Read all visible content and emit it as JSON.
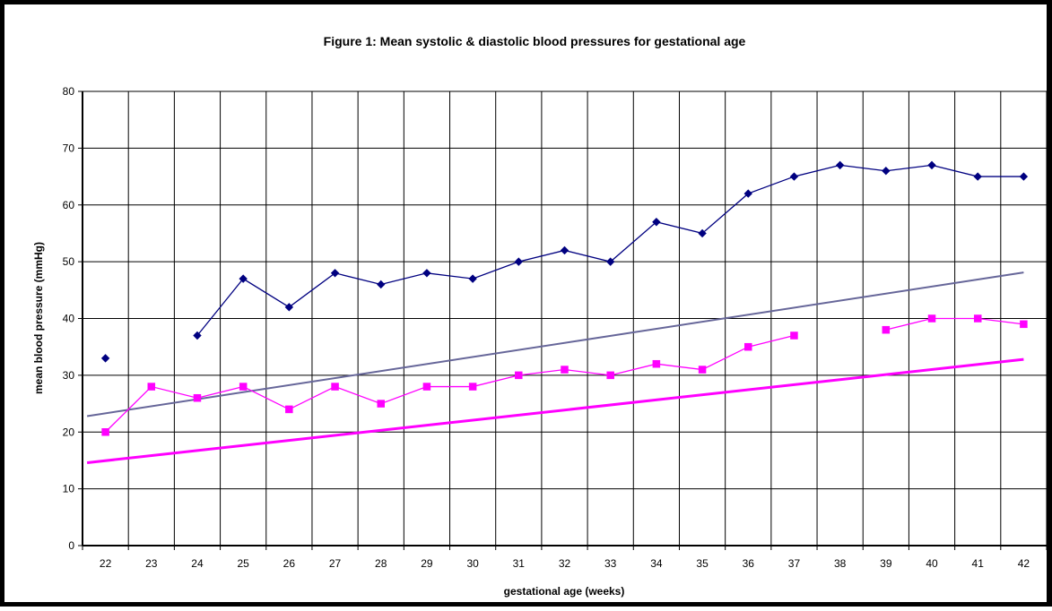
{
  "chart_data": {
    "type": "line",
    "title": "Figure 1:  Mean systolic & diastolic blood pressures for gestational age",
    "xlabel": "gestational age (weeks)",
    "ylabel": "mean blood pressure (mmHg)",
    "x": [
      22,
      23,
      24,
      25,
      26,
      27,
      28,
      29,
      30,
      31,
      32,
      33,
      34,
      35,
      36,
      37,
      38,
      39,
      40,
      41,
      42
    ],
    "xlim": [
      22,
      42
    ],
    "ylim": [
      0,
      80
    ],
    "yticks": [
      0,
      10,
      20,
      30,
      40,
      50,
      60,
      70,
      80
    ],
    "grid": true,
    "legend": "none",
    "series": [
      {
        "color": "#000080",
        "marker": "diamond",
        "values": [
          33,
          null,
          37,
          47,
          42,
          48,
          46,
          48,
          47,
          50,
          52,
          50,
          57,
          55,
          62,
          65,
          67,
          66,
          67,
          65,
          65
        ]
      },
      {
        "color": "#FF00FF",
        "marker": "square",
        "values": [
          20,
          28,
          26,
          28,
          24,
          28,
          25,
          28,
          28,
          30,
          31,
          30,
          32,
          31,
          35,
          37,
          null,
          38,
          40,
          40,
          39
        ]
      }
    ],
    "trend_lines": [
      {
        "color": "#666699",
        "from": [
          21.6,
          22.8
        ],
        "to": [
          42,
          48.1
        ]
      },
      {
        "color": "#FF00FF",
        "from": [
          21.6,
          14.6
        ],
        "to": [
          42,
          32.8
        ]
      }
    ]
  }
}
